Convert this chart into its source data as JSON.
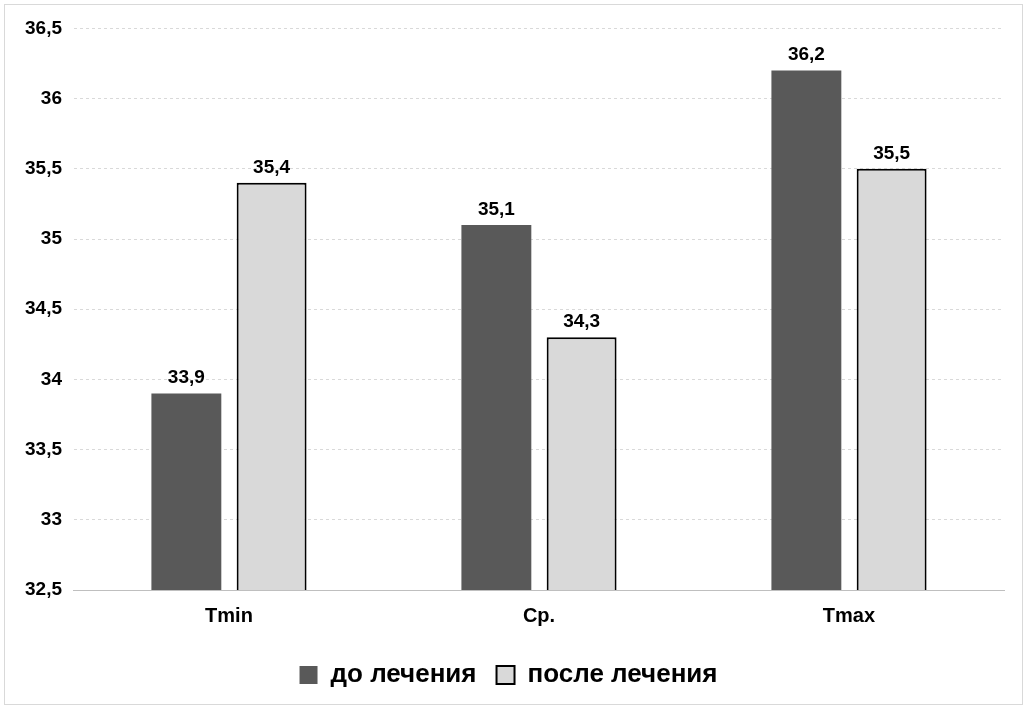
{
  "chart_data": {
    "type": "bar",
    "categories": [
      "Tmin",
      "Ср.",
      "Tmax"
    ],
    "series": [
      {
        "name": "до лечения",
        "color": "#595959",
        "values": [
          33.9,
          35.1,
          36.2
        ],
        "value_labels": [
          "33,9",
          "35,1",
          "36,2"
        ]
      },
      {
        "name": "после лечения",
        "color": "#d9d9d9",
        "values": [
          35.4,
          34.3,
          35.5
        ],
        "value_labels": [
          "35,4",
          "34,3",
          "35,5"
        ]
      }
    ],
    "ylim": [
      32.5,
      36.5
    ],
    "yticks": [
      {
        "value": 32.5,
        "label": "32,5"
      },
      33,
      {
        "value": 33.5,
        "label": "33,5"
      },
      34,
      {
        "value": 34.5,
        "label": "34,5"
      },
      35,
      {
        "value": 35.5,
        "label": "35,5"
      },
      36,
      {
        "value": 36.5,
        "label": "36,5"
      }
    ],
    "grid": "y",
    "legend": "bottom"
  }
}
